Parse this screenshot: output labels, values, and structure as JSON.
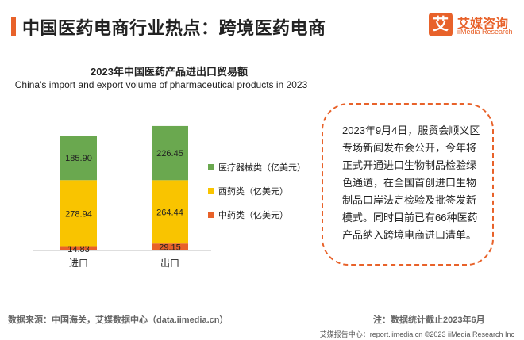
{
  "page": {
    "title": "中国医药电商行业热点：跨境医药电商",
    "brand": {
      "mark": "艾",
      "name": "艾媒咨询",
      "sub": "iiMedia Research"
    },
    "callout": "2023年9月4日，服贸会顺义区专场新闻发布会公开，今年将正式开通进口生物制品检验绿色通道，在全国首创进口生物制品口岸法定检验及批签发新模式。同时目前已有66种医药产品纳入跨境电商进口清单。",
    "source": "数据来源：中国海关，艾媒数据中心（data.iimedia.cn）",
    "note": "注：数据统计截止2023年6月",
    "footer": "艾媒报告中心：report.iimedia.cn ©2023  iiMedia Research Inc",
    "colors": {
      "accent": "#e8622a"
    }
  },
  "chart_data": {
    "type": "bar",
    "stacked": true,
    "title": "2023年中国医药产品进出口贸易额",
    "subtitle": "China's import and export volume of pharmaceutical products in 2023",
    "categories": [
      "进口",
      "出口"
    ],
    "series": [
      {
        "name": "中药类（亿美元）",
        "values": [
          14.83,
          29.15
        ],
        "color": "#e8622a"
      },
      {
        "name": "西药类（亿美元）",
        "values": [
          278.94,
          264.44
        ],
        "color": "#f9c400"
      },
      {
        "name": "医疗器械类（亿美元）",
        "values": [
          185.9,
          226.45
        ],
        "color": "#6aa84f"
      }
    ],
    "legend_position": "right",
    "grid": false,
    "ylim": [
      0,
      520
    ]
  }
}
